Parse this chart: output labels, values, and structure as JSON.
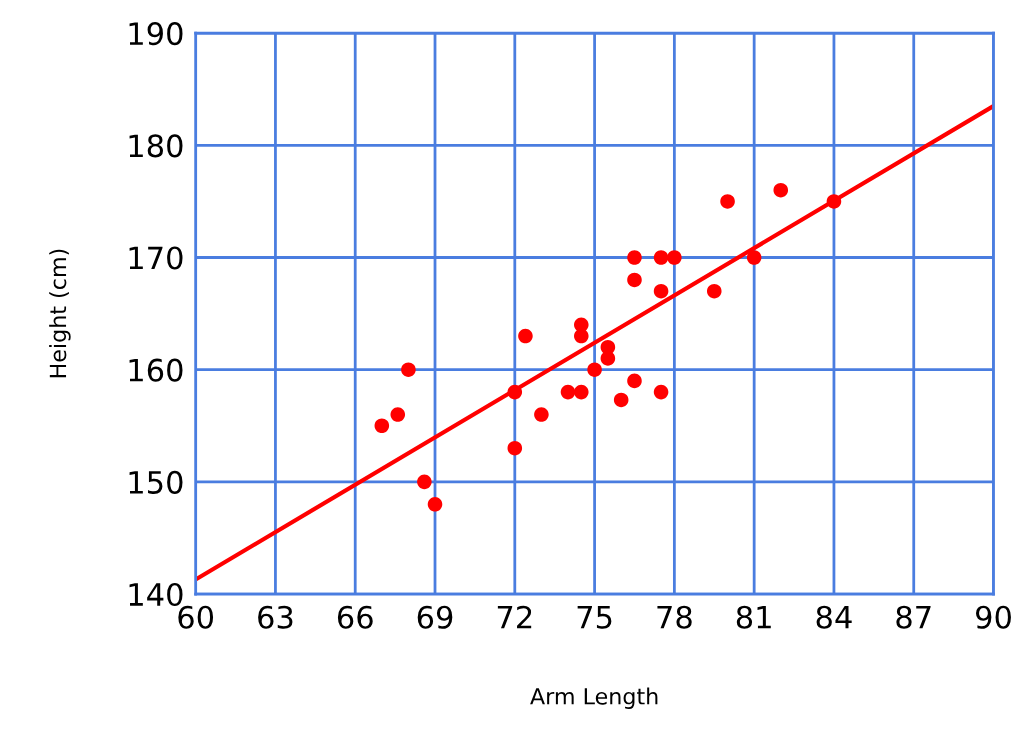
{
  "chart_data": {
    "type": "scatter",
    "xlabel": "Arm Length",
    "ylabel": "Height (cm)",
    "xlim": [
      60,
      90
    ],
    "xticks": [
      60,
      63,
      66,
      69,
      72,
      75,
      78,
      81,
      84,
      87,
      90
    ],
    "ylim": [
      140,
      190
    ],
    "yticks": [
      140,
      150,
      160,
      170,
      180,
      190
    ],
    "grid": true,
    "series": [
      {
        "marker": "circle",
        "color": "#ff0000",
        "x": [
          67,
          67.6,
          68,
          68.6,
          69,
          72,
          72,
          72.4,
          73,
          74,
          74.5,
          74.5,
          74.5,
          75,
          75.5,
          75.5,
          76,
          76.5,
          76.5,
          76.5,
          77.5,
          78,
          77.5,
          77.5,
          79.5,
          80,
          81,
          82,
          84
        ],
        "values": [
          155,
          156,
          160,
          150,
          148,
          158,
          153,
          163,
          156,
          158,
          158,
          164,
          163,
          160,
          162,
          161,
          157.3,
          159,
          168,
          170,
          170,
          170,
          167,
          158,
          167,
          175,
          170,
          176,
          175
        ]
      },
      {
        "type": "line",
        "marker": "none",
        "color": "#ff0000",
        "x": [
          60,
          90
        ],
        "values": [
          141.3,
          183.5
        ]
      }
    ]
  }
}
